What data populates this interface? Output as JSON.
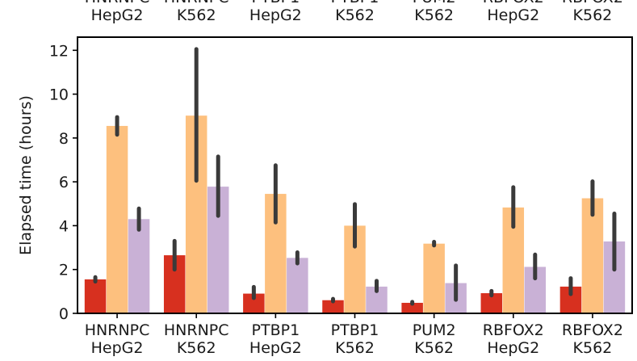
{
  "chart_data": {
    "type": "bar",
    "title": "",
    "xlabel": "",
    "ylabel": "Elapsed time (hours)",
    "ylim": [
      0,
      12.6
    ],
    "yticks": [
      0,
      2,
      4,
      6,
      8,
      10,
      12
    ],
    "grid": false,
    "categories": [
      [
        "HNRNPC",
        "HepG2"
      ],
      [
        "HNRNPC",
        "K562"
      ],
      [
        "PTBP1",
        "HepG2"
      ],
      [
        "PTBP1",
        "K562"
      ],
      [
        "PUM2",
        "K562"
      ],
      [
        "RBFOX2",
        "HepG2"
      ],
      [
        "RBFOX2",
        "K562"
      ]
    ],
    "series": [
      {
        "color": "#d7301f",
        "values": [
          1.55,
          2.65,
          0.9,
          0.6,
          0.48,
          0.92,
          1.22
        ],
        "err_low": [
          1.45,
          2.0,
          0.7,
          0.55,
          0.44,
          0.82,
          0.88
        ],
        "err_high": [
          1.65,
          3.3,
          1.2,
          0.66,
          0.52,
          1.02,
          1.6
        ]
      },
      {
        "color": "#fdc07e",
        "values": [
          8.55,
          9.02,
          5.45,
          4.0,
          3.18,
          4.83,
          5.25
        ],
        "err_low": [
          8.15,
          6.05,
          4.15,
          3.05,
          3.1,
          3.95,
          4.5
        ],
        "err_high": [
          8.95,
          12.05,
          6.75,
          4.98,
          3.26,
          5.75,
          6.02
        ]
      },
      {
        "color": "#c9b1d6",
        "values": [
          4.3,
          5.78,
          2.53,
          1.22,
          1.38,
          2.12,
          3.28
        ],
        "err_low": [
          3.82,
          4.45,
          2.28,
          1.02,
          0.62,
          1.6,
          2.0
        ],
        "err_high": [
          4.78,
          7.15,
          2.78,
          1.48,
          2.18,
          2.68,
          4.55
        ]
      }
    ],
    "top_labels_clipped": true
  }
}
